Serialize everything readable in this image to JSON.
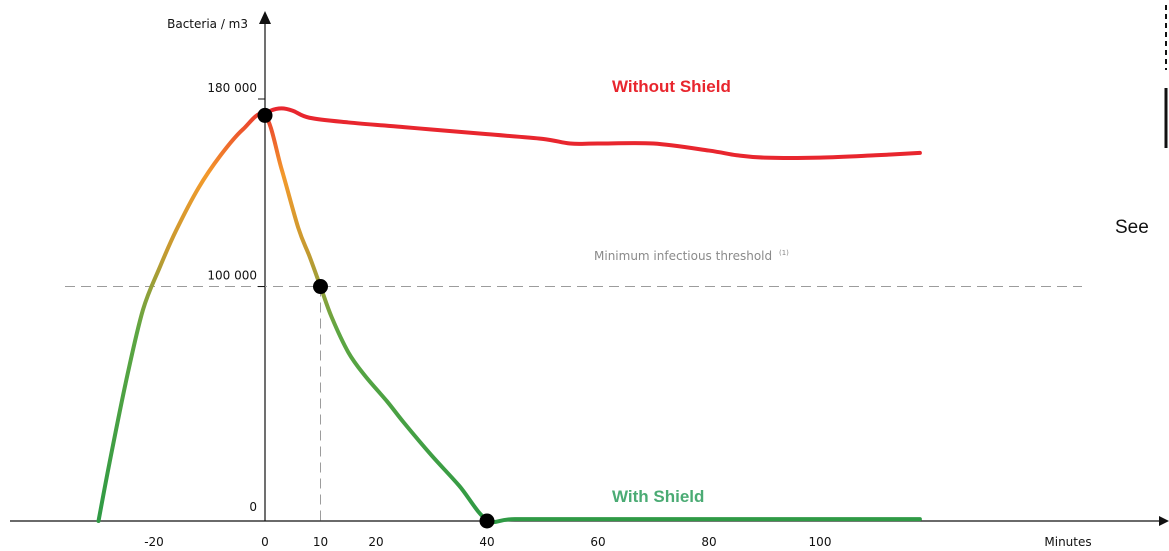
{
  "chart_data": {
    "type": "line",
    "ylabel": "Bacteria / m3",
    "xlabel": "Minutes",
    "xlim": [
      -30,
      125
    ],
    "ylim": [
      0,
      200000
    ],
    "x_ticks": [
      -20,
      0,
      10,
      20,
      40,
      60,
      80,
      100
    ],
    "y_ticks": [
      {
        "value": 0,
        "label": "0"
      },
      {
        "value": 100000,
        "label": "100 000"
      },
      {
        "value": 180000,
        "label": "180 000"
      }
    ],
    "threshold": {
      "value": 100000,
      "label": "Minimum infectious threshold",
      "footnote": "(1)"
    },
    "guide": {
      "x": 10,
      "y": 100000
    },
    "series": [
      {
        "name": "Without Shield",
        "color": "#e8262e",
        "x": [
          0,
          1,
          3,
          5,
          8,
          15,
          25,
          30,
          40,
          50,
          55,
          60,
          70,
          80,
          85,
          90,
          100,
          110,
          118
        ],
        "y": [
          173000,
          175000,
          176000,
          175000,
          172000,
          170000,
          168000,
          167000,
          165000,
          163000,
          161000,
          161000,
          161000,
          158000,
          156000,
          155000,
          155000,
          156000,
          157000
        ]
      },
      {
        "name": "With Shield",
        "color": "#2f9a45",
        "label_color": "#4bab74",
        "x": [
          -30,
          -28,
          -25,
          -22,
          -19,
          -16,
          -12,
          -8,
          -4,
          0,
          3,
          6,
          8,
          10,
          12,
          15,
          18,
          22,
          25,
          30,
          35,
          40,
          45,
          60,
          80,
          100,
          118
        ],
        "y": [
          0,
          25000,
          60000,
          90000,
          108000,
          124000,
          142000,
          156000,
          167000,
          173000,
          150000,
          125000,
          113000,
          100000,
          87000,
          72000,
          62000,
          51000,
          42000,
          28000,
          15000,
          500,
          800,
          800,
          800,
          800,
          800
        ]
      }
    ],
    "markers": [
      {
        "x": 0,
        "y": 173000
      },
      {
        "x": 10,
        "y": 100000
      },
      {
        "x": 40,
        "y": 0
      }
    ]
  },
  "side_note": {
    "text": "See"
  }
}
